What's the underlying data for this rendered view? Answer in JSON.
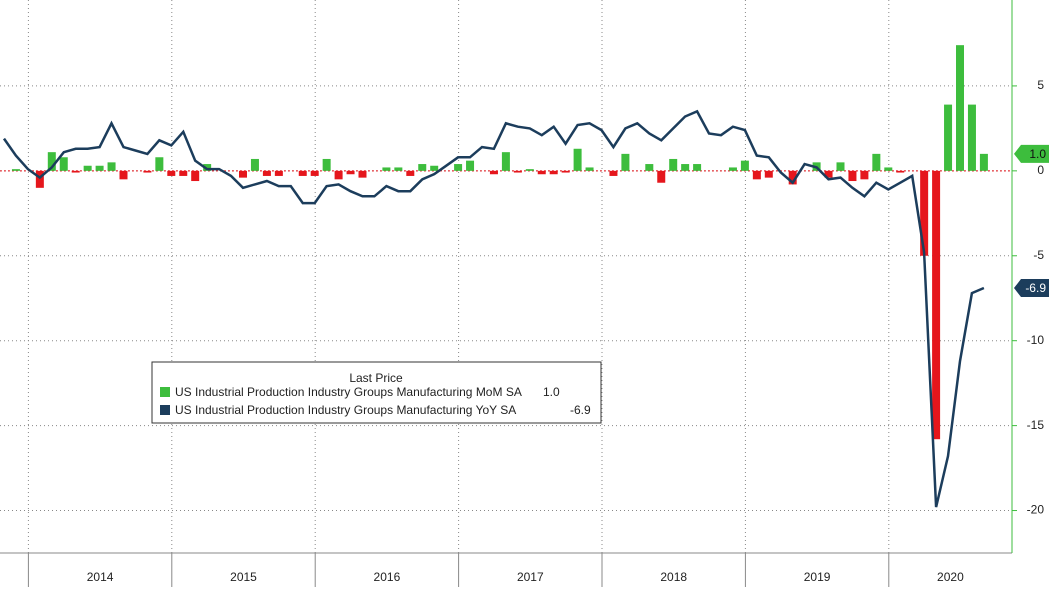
{
  "chart_data": {
    "type": "bar-line",
    "series": [
      {
        "name": "US Industrial Production Industry Groups Manufacturing MoM SA",
        "type": "bar",
        "color": "#3dbd3d",
        "negative_color": "#e5161c",
        "last_label": "1.0",
        "values": [
          0,
          0.1,
          0,
          -1.0,
          1.1,
          0.8,
          -0.1,
          0.3,
          0.3,
          0.5,
          -0.5,
          0.0,
          -0.1,
          0.8,
          -0.3,
          -0.3,
          -0.6,
          0.4,
          0.0,
          0.0,
          -0.4,
          0.7,
          -0.3,
          -0.3,
          0.0,
          -0.3,
          -0.3,
          0.7,
          -0.5,
          -0.2,
          -0.4,
          0.0,
          0.2,
          0.2,
          -0.3,
          0.4,
          0.3,
          0.0,
          0.4,
          0.6,
          0.0,
          -0.2,
          1.1,
          -0.1,
          0.1,
          -0.2,
          -0.2,
          -0.1,
          1.3,
          0.2,
          0.0,
          -0.3,
          1.0,
          0.0,
          0.4,
          -0.7,
          0.7,
          0.4,
          0.4,
          0.0,
          0.0,
          0.2,
          0.6,
          -0.5,
          -0.4,
          0.0,
          -0.8,
          0.0,
          0.5,
          -0.4,
          0.5,
          -0.6,
          -0.5,
          1.0,
          0.2,
          -0.1,
          0.0,
          -5.0,
          -15.8,
          3.9,
          7.4,
          3.9,
          1.0
        ]
      },
      {
        "name": "US Industrial Production Industry Groups Manufacturing YoY SA",
        "type": "line",
        "color": "#1c3d5c",
        "last_label": "-6.9",
        "values": [
          1.9,
          0.9,
          0.1,
          -0.4,
          0.2,
          1.1,
          1.3,
          1.3,
          1.4,
          2.8,
          1.4,
          1.2,
          1.0,
          1.8,
          1.5,
          2.3,
          0.6,
          0.1,
          0.1,
          -0.3,
          -1.0,
          -0.8,
          -0.6,
          -0.9,
          -0.9,
          -1.9,
          -1.9,
          -0.9,
          -0.8,
          -1.2,
          -1.5,
          -1.5,
          -0.9,
          -1.2,
          -1.2,
          -0.5,
          -0.2,
          0.3,
          0.8,
          0.8,
          1.4,
          1.3,
          2.8,
          2.6,
          2.5,
          2.1,
          2.6,
          1.6,
          2.7,
          2.8,
          2.4,
          1.4,
          2.5,
          2.8,
          2.2,
          1.8,
          2.5,
          3.2,
          3.5,
          2.2,
          2.1,
          2.6,
          2.4,
          0.9,
          0.8,
          -0.1,
          -0.7,
          0.4,
          0.2,
          -0.5,
          -0.4,
          -1.0,
          -1.5,
          -0.7,
          -1.1,
          -0.7,
          -0.3,
          -4.8,
          -19.8,
          -16.8,
          -11.2,
          -7.2,
          -6.9
        ]
      }
    ],
    "legend_title": "Last Price",
    "xticks": [
      "2014",
      "2015",
      "2016",
      "2017",
      "2018",
      "2019",
      "2020"
    ],
    "ylim": [
      -22.5,
      10
    ],
    "yticks": [
      5,
      0,
      -5,
      -10,
      -15,
      -20
    ],
    "grid": true
  }
}
